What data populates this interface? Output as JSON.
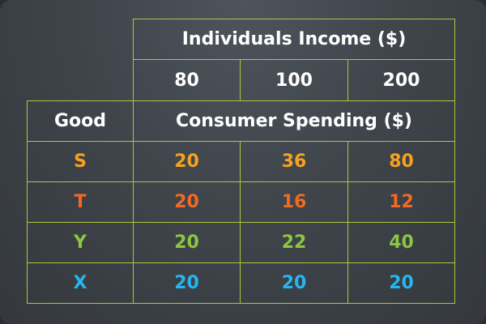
{
  "table": {
    "income_header": "Individuals Income ($)",
    "income_levels": [
      "80",
      "100",
      "200"
    ],
    "good_header": "Good",
    "spending_header": "Consumer Spending ($)",
    "rows": [
      {
        "good": "S",
        "values": [
          "20",
          "36",
          "80"
        ],
        "color": "#f7a21e"
      },
      {
        "good": "T",
        "values": [
          "20",
          "16",
          "12"
        ],
        "color": "#f26a22"
      },
      {
        "good": "Y",
        "values": [
          "20",
          "22",
          "40"
        ],
        "color": "#8dc63f"
      },
      {
        "good": "X",
        "values": [
          "20",
          "20",
          "20"
        ],
        "color": "#28b5f0"
      }
    ]
  }
}
